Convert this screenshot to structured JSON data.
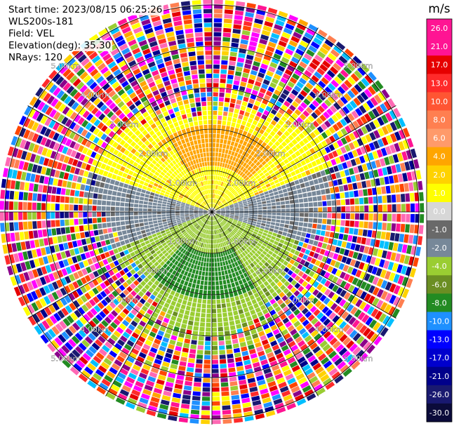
{
  "info": {
    "start_time": "Start time: 2023/08/15 06:25:26",
    "instrument": "WLS200s-181",
    "field": "Field: VEL",
    "elevation": "Elevation(deg): 35.30",
    "nrays": "NRays: 120"
  },
  "colorbar": {
    "unit": "m/s",
    "ticks": [
      "26.0",
      "21.0",
      "17.0",
      "13.0",
      "10.0",
      "8.0",
      "6.0",
      "4.0",
      "2.0",
      "1.0",
      "0.0",
      "-1.0",
      "-2.0",
      "-4.0",
      "-6.0",
      "-8.0",
      "-10.0",
      "-13.0",
      "-17.0",
      "-21.0",
      "-26.0",
      "-30.0"
    ],
    "colors": [
      "#ff1493",
      "#ff1493",
      "#e60000",
      "#ff2a2a",
      "#ff5533",
      "#ff7f50",
      "#ff9a6a",
      "#ffa500",
      "#ffd200",
      "#ffff00",
      "#d7d7d7",
      "#696969",
      "#778899",
      "#9acd32",
      "#6b8e23",
      "#228b22",
      "#1e90ff",
      "#0000ff",
      "#0000cd",
      "#00008b",
      "#191970",
      "#0b0b3a"
    ]
  },
  "chart_data": {
    "type": "heatmap",
    "projection": "polar PPI",
    "field": "VEL",
    "units": "m/s",
    "nrays": 120,
    "elevation_deg": 35.3,
    "range_ring_labels": [
      "1.00km",
      "2.00km",
      "3.00km",
      "4.00km",
      "5.00km"
    ],
    "range_rings_km": [
      1,
      2,
      3,
      4,
      5
    ],
    "color_scale_min": -30.0,
    "color_scale_max": 26.0
  }
}
